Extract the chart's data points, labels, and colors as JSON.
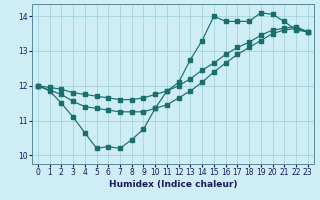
{
  "xlabel": "Humidex (Indice chaleur)",
  "bg_color": "#ceedf5",
  "grid_color": "#9ecdd8",
  "line_color": "#1a6e6e",
  "xlim": [
    -0.5,
    23.5
  ],
  "ylim": [
    9.75,
    14.35
  ],
  "xticks": [
    0,
    1,
    2,
    3,
    4,
    5,
    6,
    7,
    8,
    9,
    10,
    11,
    12,
    13,
    14,
    15,
    16,
    17,
    18,
    19,
    20,
    21,
    22,
    23
  ],
  "yticks": [
    10,
    11,
    12,
    13,
    14
  ],
  "line1_x": [
    0,
    1,
    2,
    3,
    4,
    5,
    6,
    7,
    8,
    9,
    10,
    11,
    12,
    13,
    14,
    15,
    16,
    17,
    18,
    19,
    20,
    21,
    22,
    23
  ],
  "line1_y": [
    12.0,
    11.85,
    11.5,
    11.1,
    10.65,
    10.2,
    10.25,
    10.2,
    10.45,
    10.75,
    11.35,
    11.85,
    12.1,
    12.75,
    13.3,
    14.0,
    13.85,
    13.85,
    13.85,
    14.1,
    14.05,
    13.85,
    13.6,
    13.55
  ],
  "line2_x": [
    0,
    1,
    2,
    3,
    4,
    5,
    6,
    7,
    8,
    9,
    10,
    11,
    12,
    13,
    14,
    15,
    16,
    17,
    18,
    19,
    20,
    21,
    22,
    23
  ],
  "line2_y": [
    12.0,
    11.95,
    11.9,
    11.8,
    11.75,
    11.7,
    11.65,
    11.6,
    11.6,
    11.65,
    11.75,
    11.85,
    12.0,
    12.2,
    12.45,
    12.65,
    12.9,
    13.1,
    13.25,
    13.45,
    13.6,
    13.65,
    13.7,
    13.55
  ],
  "line3_x": [
    0,
    2,
    3,
    4,
    5,
    6,
    7,
    8,
    9,
    10,
    11,
    12,
    13,
    14,
    15,
    16,
    17,
    18,
    19,
    20,
    21,
    22,
    23
  ],
  "line3_y": [
    12.0,
    11.75,
    11.55,
    11.4,
    11.35,
    11.3,
    11.25,
    11.25,
    11.25,
    11.35,
    11.45,
    11.65,
    11.85,
    12.1,
    12.4,
    12.65,
    12.9,
    13.1,
    13.3,
    13.5,
    13.6,
    13.65,
    13.55
  ]
}
